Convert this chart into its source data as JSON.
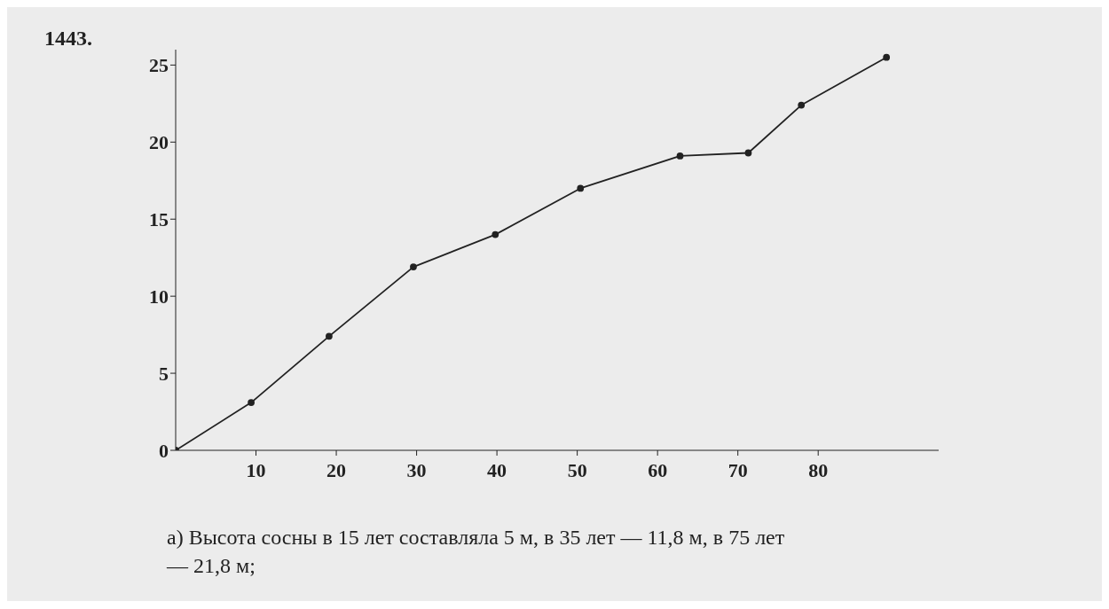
{
  "chart_data": {
    "type": "line",
    "title": "1443.",
    "x": [
      0,
      9.4,
      19.1,
      29.6,
      39.8,
      50.4,
      62.8,
      71.3,
      77.9,
      88.5
    ],
    "values": [
      0,
      3.1,
      7.4,
      11.9,
      14.0,
      17.0,
      19.1,
      19.3,
      22.4,
      25.5
    ],
    "color": "#222222",
    "marker": "circle",
    "line_style": "solid",
    "grid": false,
    "legend": false,
    "xlim": [
      0,
      95
    ],
    "xticks": [
      10,
      20,
      30,
      40,
      50,
      60,
      70,
      80
    ],
    "ylim": [
      0,
      26
    ],
    "yticks": [
      0,
      5,
      10,
      15,
      20,
      25
    ],
    "annotations": [
      "а) Высота сосны в 15 лет составляла 5 м, в 35 лет — 11,8 м, в 75 лет — 21,8 м;"
    ]
  }
}
